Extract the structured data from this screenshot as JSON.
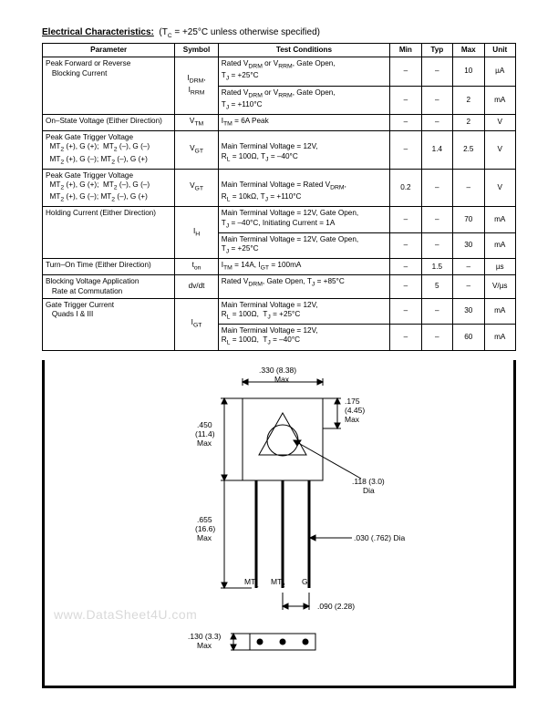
{
  "header": {
    "title": "Electrical Characteristics:",
    "condition": "(T",
    "condition_sub": "C",
    "condition_rest": " = +25°C unless otherwise specified)"
  },
  "columns": {
    "param": "Parameter",
    "symbol": "Symbol",
    "cond": "Test Conditions",
    "min": "Min",
    "typ": "Typ",
    "max": "Max",
    "unit": "Unit"
  },
  "rows": [
    {
      "param": "Peak Forward or Reverse\n   Blocking Current",
      "symbol_html": "I<sub>DRM</sub>,<br>I<sub>RRM</sub>",
      "cond_html": "Rated V<sub>DRM</sub> or V<sub>RRM</sub>, Gate Open,<br>T<sub>J</sub> = +25°C",
      "min": "–",
      "typ": "–",
      "max": "10",
      "unit": "µA",
      "rowspan_sym": 2,
      "rowspan_param": 2
    },
    {
      "cond_html": "Rated V<sub>DRM</sub> or V<sub>RRM</sub>, Gate Open,<br>T<sub>J</sub> = +110°C",
      "min": "–",
      "typ": "–",
      "max": "2",
      "unit": "mA"
    },
    {
      "param": "On–State Voltage (Either Direction)",
      "symbol_html": "V<sub>TM</sub>",
      "cond_html": "I<sub>TM</sub> = 6A Peak",
      "min": "–",
      "typ": "–",
      "max": "2",
      "unit": "V"
    },
    {
      "param_html": "Peak Gate Trigger Voltage<br>&nbsp;&nbsp;MT<sub>2</sub> (+), G (+);&nbsp; MT<sub>2</sub> (–), G (–)<br>&nbsp;&nbsp;MT<sub>2</sub> (+), G (–); MT<sub>2</sub> (–), G (+)",
      "symbol_html": "V<sub>GT</sub>",
      "cond_html": "<br>Main Terminal Voltage = 12V,<br>R<sub>L</sub> = 100Ω, T<sub>J</sub> = –40°C",
      "min": "–",
      "typ": "1.4",
      "max": "2.5",
      "unit": "V"
    },
    {
      "param_html": "Peak Gate Trigger Voltage<br>&nbsp;&nbsp;MT<sub>2</sub> (+), G (+);&nbsp; MT<sub>2</sub> (–), G (–)<br>&nbsp;&nbsp;MT<sub>2</sub> (+), G (–); MT<sub>2</sub> (–), G (+)",
      "symbol_html": "V<sub>GT</sub>",
      "cond_html": "<br>Main Terminal Voltage = Rated V<sub>DRM</sub>,<br>R<sub>L</sub> = 10kΩ, T<sub>J</sub> = +110°C",
      "min": "0.2",
      "typ": "–",
      "max": "–",
      "unit": "V"
    },
    {
      "param": "Holding Current (Either Direction)",
      "symbol_html": "I<sub>H</sub>",
      "cond_html": "Main Terminal Voltage = 12V, Gate Open,<br>T<sub>J</sub> = –40°C, Initiating Current = 1A",
      "min": "–",
      "typ": "–",
      "max": "70",
      "unit": "mA",
      "rowspan_param": 2,
      "rowspan_sym": 2
    },
    {
      "cond_html": "Main Terminal Voltage = 12V, Gate Open,<br>T<sub>J</sub> = +25°C",
      "min": "–",
      "typ": "–",
      "max": "30",
      "unit": "mA"
    },
    {
      "param": "Turn–On Time (Either Direction)",
      "symbol_html": "t<sub>on</sub>",
      "cond_html": "I<sub>TM</sub> = 14A, I<sub>GT</sub> = 100mA",
      "min": "–",
      "typ": "1.5",
      "max": "–",
      "unit": "µs"
    },
    {
      "param": "Blocking Voltage Application\n   Rate at Commutation",
      "symbol_html": "dv/dt",
      "cond_html": "Rated V<sub>DRM</sub>, Gate Open, T<sub>J</sub> = +85°C",
      "min": "–",
      "typ": "5",
      "max": "–",
      "unit": "V/µs"
    },
    {
      "param": "Gate Trigger Current\n   Quads I & III",
      "symbol_html": "I<sub>GT</sub>",
      "cond_html": "Main Terminal Voltage = 12V,<br>R<sub>L</sub> = 100Ω,&nbsp; T<sub>J</sub> = +25°C",
      "min": "–",
      "typ": "–",
      "max": "30",
      "unit": "mA",
      "rowspan_param": 2,
      "rowspan_sym": 2
    },
    {
      "cond_html": "Main Terminal Voltage = 12V,<br>R<sub>L</sub> = 100Ω,&nbsp; T<sub>J</sub> = –40°C",
      "min": "–",
      "typ": "–",
      "max": "60",
      "unit": "mA"
    }
  ],
  "package": {
    "dims": {
      "top_w": ".330 (8.38)\nMax",
      "height_body": ".450\n(11.4)\nMax",
      "height_lead": ".655\n(16.6)\nMax",
      "right_top": ".175\n(4.45)\nMax",
      "circle_dia": ".118 (3.0)\nDia",
      "lead_dia": ".030 (.762) Dia",
      "pitch": ".090 (2.28)",
      "bottom_thick": ".130 (3.3)\nMax"
    },
    "pins": {
      "p1": "MT",
      "p1s": "1",
      "p2": "MT",
      "p2s": "2",
      "p3": "G"
    }
  },
  "watermark": "www.DataSheet4U.com"
}
